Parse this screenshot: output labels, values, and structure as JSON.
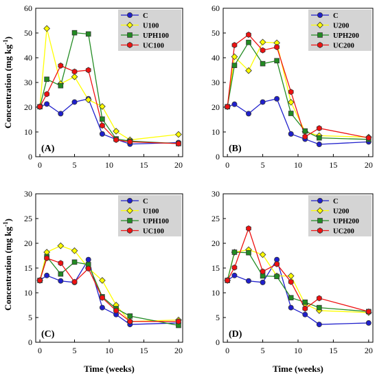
{
  "figure": {
    "ylabel": "Concentration (mg kg",
    "ylabel_sup": "-1",
    "ylabel_tail": ")",
    "xlabel": "Time (weeks)"
  },
  "chart_data": [
    {
      "type": "line",
      "panel_label": "(A)",
      "x": [
        0,
        1,
        3,
        5,
        7,
        9,
        11,
        13,
        20
      ],
      "xlim": [
        -0.6,
        20.6
      ],
      "ylim": [
        0,
        60
      ],
      "xticks": [
        0,
        5,
        10,
        15,
        20
      ],
      "yticks": [
        0,
        10,
        20,
        30,
        40,
        50,
        60
      ],
      "legend_position": "top-right",
      "series": [
        {
          "name": "C",
          "color": "#1f1fcc",
          "marker": "circle",
          "values": [
            20.2,
            21.3,
            17.4,
            22.1,
            23.4,
            9.2,
            7.0,
            5.1,
            5.7
          ]
        },
        {
          "name": "U100",
          "color": "#ffff00",
          "marker": "diamond",
          "values": [
            20.2,
            51.8,
            29.5,
            32.3,
            23.0,
            20.3,
            10.3,
            6.8,
            9.0
          ]
        },
        {
          "name": "UPH100",
          "color": "#228b22",
          "marker": "square",
          "values": [
            20.2,
            31.3,
            28.7,
            50.1,
            49.6,
            15.2,
            7.2,
            6.3,
            5.3
          ]
        },
        {
          "name": "UC100",
          "color": "#ee1111",
          "marker": "hexagon",
          "values": [
            20.2,
            25.3,
            36.8,
            34.4,
            35.0,
            12.6,
            6.8,
            6.0,
            5.3
          ]
        }
      ]
    },
    {
      "type": "line",
      "panel_label": "(B)",
      "x": [
        0,
        1,
        3,
        5,
        7,
        9,
        11,
        13,
        20
      ],
      "xlim": [
        -0.6,
        20.6
      ],
      "ylim": [
        0,
        60
      ],
      "xticks": [
        0,
        5,
        10,
        15,
        20
      ],
      "yticks": [
        0,
        10,
        20,
        30,
        40,
        50,
        60
      ],
      "legend_position": "top-right",
      "series": [
        {
          "name": "C",
          "color": "#1f1fcc",
          "marker": "circle",
          "values": [
            20.2,
            21.2,
            17.4,
            22.1,
            23.4,
            9.2,
            7.1,
            5.0,
            6.0
          ]
        },
        {
          "name": "U200",
          "color": "#ffff00",
          "marker": "diamond",
          "values": [
            20.2,
            40.4,
            34.8,
            46.3,
            46.0,
            22.0,
            10.1,
            8.5,
            7.9
          ]
        },
        {
          "name": "UPH200",
          "color": "#228b22",
          "marker": "square",
          "values": [
            20.2,
            36.9,
            46.2,
            37.6,
            38.8,
            17.5,
            10.4,
            7.6,
            7.0
          ]
        },
        {
          "name": "UC200",
          "color": "#ee1111",
          "marker": "hexagon",
          "values": [
            20.2,
            45.1,
            49.3,
            43.0,
            44.3,
            26.2,
            8.1,
            11.5,
            7.6
          ]
        }
      ]
    },
    {
      "type": "line",
      "panel_label": "(C)",
      "x": [
        0,
        1,
        3,
        5,
        7,
        9,
        11,
        13,
        20
      ],
      "xlim": [
        -0.6,
        20.6
      ],
      "ylim": [
        0,
        30
      ],
      "xticks": [
        0,
        5,
        10,
        15,
        20
      ],
      "yticks": [
        0,
        5,
        10,
        15,
        20,
        25,
        30
      ],
      "legend_position": "top-right",
      "series": [
        {
          "name": "C",
          "color": "#1f1fcc",
          "marker": "circle",
          "values": [
            12.5,
            13.5,
            12.4,
            12.1,
            16.7,
            7.0,
            5.6,
            3.6,
            3.9
          ]
        },
        {
          "name": "U100",
          "color": "#ffff00",
          "marker": "diamond",
          "values": [
            12.5,
            18.2,
            19.5,
            18.5,
            15.0,
            12.5,
            7.5,
            4.2,
            4.5
          ]
        },
        {
          "name": "UPH100",
          "color": "#228b22",
          "marker": "square",
          "values": [
            12.5,
            17.3,
            13.8,
            16.2,
            15.7,
            9.2,
            6.8,
            5.3,
            3.4
          ]
        },
        {
          "name": "UC100",
          "color": "#ee1111",
          "marker": "hexagon",
          "values": [
            12.5,
            17.0,
            16.0,
            12.2,
            14.9,
            9.0,
            6.4,
            4.2,
            4.2
          ]
        }
      ]
    },
    {
      "type": "line",
      "panel_label": "(D)",
      "x": [
        0,
        1,
        3,
        5,
        7,
        9,
        11,
        13,
        20
      ],
      "xlim": [
        -0.6,
        20.6
      ],
      "ylim": [
        0,
        30
      ],
      "xticks": [
        0,
        5,
        10,
        15,
        20
      ],
      "yticks": [
        0,
        5,
        10,
        15,
        20,
        25,
        30
      ],
      "legend_position": "top-right",
      "series": [
        {
          "name": "C",
          "color": "#1f1fcc",
          "marker": "circle",
          "values": [
            12.5,
            13.5,
            12.4,
            12.1,
            16.7,
            7.0,
            5.6,
            3.6,
            3.9
          ]
        },
        {
          "name": "U200",
          "color": "#ffff00",
          "marker": "diamond",
          "values": [
            12.5,
            18.2,
            18.7,
            17.7,
            13.4,
            13.4,
            7.7,
            6.4,
            6.0
          ]
        },
        {
          "name": "UPH200",
          "color": "#228b22",
          "marker": "square",
          "values": [
            12.5,
            18.2,
            18.1,
            13.4,
            13.3,
            9.0,
            8.1,
            7.0,
            6.2
          ]
        },
        {
          "name": "UC200",
          "color": "#ee1111",
          "marker": "hexagon",
          "values": [
            12.5,
            15.1,
            23.0,
            14.3,
            15.8,
            12.2,
            6.8,
            8.9,
            6.2
          ]
        }
      ]
    }
  ]
}
